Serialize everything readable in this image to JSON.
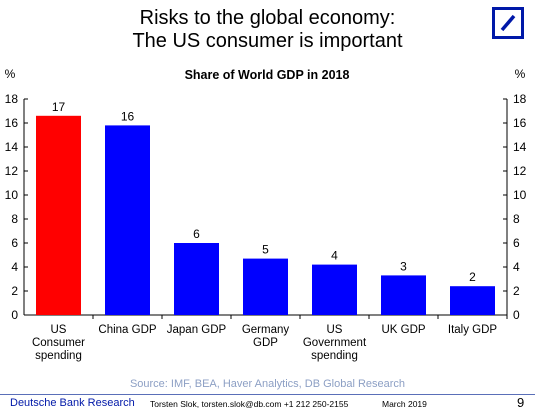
{
  "header": {
    "title_line1": "Risks to the global economy:",
    "title_line2": "The US consumer is important"
  },
  "logo": {
    "icon": "deutsche-bank-logo-icon",
    "color": "#0018a8"
  },
  "chart_data": {
    "type": "bar",
    "title": "Share of  World GDP in 2018",
    "ylabel_left": "%",
    "ylabel_right": "%",
    "ylim": [
      0,
      18
    ],
    "yticks": [
      0,
      2,
      4,
      6,
      8,
      10,
      12,
      14,
      16,
      18
    ],
    "grid": false,
    "categories": [
      [
        "US",
        "Consumer",
        "spending"
      ],
      [
        "China GDP"
      ],
      [
        "Japan GDP"
      ],
      [
        "Germany",
        "GDP"
      ],
      [
        "US",
        "Government",
        "spending"
      ],
      [
        "UK GDP"
      ],
      [
        "Italy GDP"
      ]
    ],
    "values": [
      16.6,
      15.8,
      6.0,
      4.7,
      4.2,
      3.3,
      2.4
    ],
    "data_labels": [
      "17",
      "16",
      "6",
      "5",
      "4",
      "3",
      "2"
    ],
    "bar_colors": [
      "#ff0000",
      "#0000ff",
      "#0000ff",
      "#0000ff",
      "#0000ff",
      "#0000ff",
      "#0000ff"
    ]
  },
  "source": "Source: IMF, BEA, Haver Analytics, DB Global Research",
  "footer": {
    "brand": "Deutsche Bank Research",
    "author": "Torsten Slok, torsten.slok@db.com  +1 212 250-2155",
    "date": "March 2019",
    "page": "9"
  }
}
